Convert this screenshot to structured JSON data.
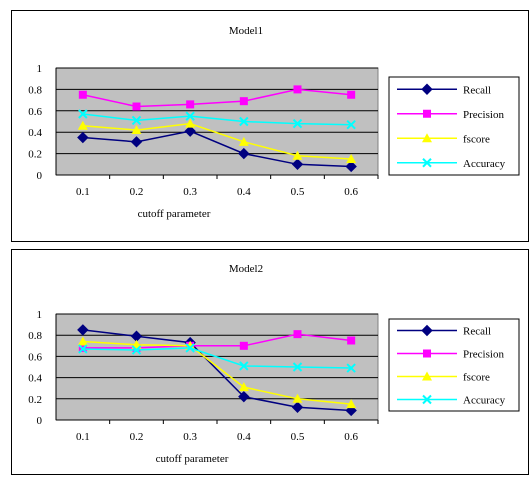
{
  "chart_data": [
    {
      "type": "line",
      "title": "Model1",
      "xlabel": "cutoff parameter",
      "ylabel": "",
      "categories": [
        "0.1",
        "0.2",
        "0.3",
        "0.4",
        "0.5",
        "0.6"
      ],
      "ylim": [
        0,
        1
      ],
      "yticks": [
        "0",
        "0.2",
        "0.4",
        "0.6",
        "0.8",
        "1"
      ],
      "grid": true,
      "legend": "right",
      "plot_background": "#c0c0c0",
      "series": [
        {
          "name": "Recall",
          "values": [
            0.35,
            0.31,
            0.41,
            0.2,
            0.1,
            0.08
          ],
          "color": "#000080",
          "marker": "diamond"
        },
        {
          "name": "Precision",
          "values": [
            0.75,
            0.64,
            0.66,
            0.69,
            0.8,
            0.75
          ],
          "color": "#ff00ff",
          "marker": "square"
        },
        {
          "name": "fscore",
          "values": [
            0.46,
            0.42,
            0.48,
            0.31,
            0.18,
            0.15
          ],
          "color": "#ffff00",
          "marker": "triangle"
        },
        {
          "name": "Accuracy",
          "values": [
            0.57,
            0.51,
            0.55,
            0.5,
            0.48,
            0.47
          ],
          "color": "#00ffff",
          "marker": "x"
        }
      ]
    },
    {
      "type": "line",
      "title": "Model2",
      "xlabel": "cutoff parameter",
      "ylabel": "",
      "categories": [
        "0.1",
        "0.2",
        "0.3",
        "0.4",
        "0.5",
        "0.6"
      ],
      "ylim": [
        0,
        1
      ],
      "yticks": [
        "0",
        "0.2",
        "0.4",
        "0.6",
        "0.8",
        "1"
      ],
      "grid": true,
      "legend": "right",
      "plot_background": "#c0c0c0",
      "series": [
        {
          "name": "Recall",
          "values": [
            0.85,
            0.79,
            0.73,
            0.22,
            0.12,
            0.09
          ],
          "color": "#000080",
          "marker": "diamond"
        },
        {
          "name": "Precision",
          "values": [
            0.68,
            0.68,
            0.7,
            0.7,
            0.81,
            0.75
          ],
          "color": "#ff00ff",
          "marker": "square"
        },
        {
          "name": "fscore",
          "values": [
            0.74,
            0.71,
            0.7,
            0.31,
            0.2,
            0.15
          ],
          "color": "#ffff00",
          "marker": "triangle"
        },
        {
          "name": "Accuracy",
          "values": [
            0.67,
            0.66,
            0.68,
            0.51,
            0.5,
            0.49
          ],
          "color": "#00ffff",
          "marker": "x"
        }
      ]
    }
  ]
}
